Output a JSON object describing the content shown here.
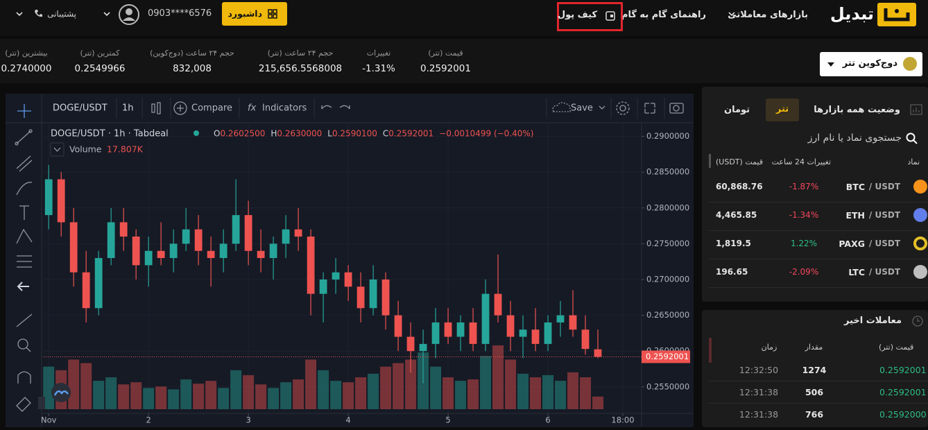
{
  "nav": {
    "logo": "تبدیل",
    "markets": "بازارهای معاملاتی",
    "guide": "راهنمای گام به گام",
    "wallet": "کیف پول",
    "dashboard": "داشبورد",
    "phone": "0903****6576",
    "support": "پشتیبانی"
  },
  "ticker": [
    {
      "label": "قیمت (تتر)",
      "value": "0.2592001"
    },
    {
      "label": "تغییرات",
      "value": "-1.31%"
    },
    {
      "label": "حجم ۲۴ ساعت (تتر)",
      "value": "215,656.5568008"
    },
    {
      "label": "حجم ۲۴ ساعت (دوج‌کوین)",
      "value": "832,008"
    },
    {
      "label": "کمترین (تتر)",
      "value": "0.2549966"
    },
    {
      "label": "بیشترین (تتر)",
      "value": "0.2740000"
    }
  ],
  "market_selector": "دوج‌کوین تتر",
  "toolbar": {
    "symbol": "DOGE/USDT",
    "interval": "1h",
    "compare": "Compare",
    "indicators": "Indicators",
    "save": "Save"
  },
  "chart_data": {
    "type": "candlestick",
    "title": "DOGE/USDT · 1h · Tabdeal",
    "ohlc_legend": [
      {
        "key": "O",
        "text": "0.2602500"
      },
      {
        "key": "H",
        "text": "0.2630000"
      },
      {
        "key": "L",
        "text": "0.2590100"
      },
      {
        "key": "C",
        "text": "0.2592001"
      }
    ],
    "change_text": "−0.0010499 (−0.40%)",
    "volume_name": "Volume",
    "volume_label": "17.807K",
    "x": [
      0,
      3,
      6,
      9,
      12,
      15,
      18,
      21,
      24,
      27,
      30,
      33,
      36,
      39,
      42,
      45,
      48,
      51,
      54,
      57,
      60,
      63,
      66,
      69,
      72,
      75,
      78,
      81,
      84,
      87,
      90,
      93,
      96,
      99,
      102,
      105,
      108,
      111,
      114,
      117,
      120,
      123,
      126,
      129,
      132
    ],
    "open": [
      0.279,
      0.284,
      0.278,
      0.271,
      0.266,
      0.273,
      0.278,
      0.276,
      0.272,
      0.274,
      0.273,
      0.275,
      0.277,
      0.274,
      0.273,
      0.275,
      0.279,
      0.274,
      0.273,
      0.275,
      0.277,
      0.276,
      0.268,
      0.27,
      0.271,
      0.269,
      0.266,
      0.27,
      0.265,
      0.262,
      0.26,
      0.261,
      0.264,
      0.262,
      0.264,
      0.261,
      0.268,
      0.265,
      0.262,
      0.263,
      0.261,
      0.264,
      0.265,
      0.263,
      0.26025
    ],
    "high": [
      0.286,
      0.285,
      0.28,
      0.274,
      0.274,
      0.28,
      0.28,
      0.277,
      0.276,
      0.278,
      0.277,
      0.28,
      0.279,
      0.276,
      0.277,
      0.284,
      0.281,
      0.277,
      0.276,
      0.279,
      0.28,
      0.277,
      0.271,
      0.273,
      0.272,
      0.271,
      0.272,
      0.271,
      0.267,
      0.264,
      0.263,
      0.266,
      0.266,
      0.265,
      0.266,
      0.27,
      0.2735,
      0.267,
      0.265,
      0.266,
      0.265,
      0.267,
      0.2685,
      0.265,
      0.263
    ],
    "low": [
      0.277,
      0.276,
      0.269,
      0.264,
      0.265,
      0.272,
      0.274,
      0.27,
      0.269,
      0.272,
      0.271,
      0.274,
      0.272,
      0.269,
      0.271,
      0.274,
      0.272,
      0.271,
      0.27,
      0.273,
      0.274,
      0.265,
      0.264,
      0.268,
      0.267,
      0.264,
      0.265,
      0.263,
      0.26,
      0.257,
      0.2555,
      0.259,
      0.261,
      0.26,
      0.26,
      0.26,
      0.264,
      0.26,
      0.259,
      0.26,
      0.26,
      0.262,
      0.262,
      0.2595,
      0.25901
    ],
    "close": [
      0.284,
      0.278,
      0.271,
      0.266,
      0.273,
      0.278,
      0.276,
      0.272,
      0.274,
      0.273,
      0.275,
      0.277,
      0.274,
      0.273,
      0.275,
      0.279,
      0.274,
      0.273,
      0.275,
      0.277,
      0.276,
      0.268,
      0.27,
      0.271,
      0.269,
      0.266,
      0.27,
      0.265,
      0.262,
      0.26,
      0.261,
      0.264,
      0.262,
      0.264,
      0.261,
      0.268,
      0.265,
      0.262,
      0.263,
      0.261,
      0.264,
      0.265,
      0.263,
      0.2603,
      0.2592001
    ],
    "volume": [
      60000,
      55000,
      70000,
      65000,
      40000,
      45000,
      35000,
      38000,
      30000,
      32000,
      28000,
      42000,
      36000,
      40000,
      30000,
      55000,
      48000,
      35000,
      30000,
      38000,
      42000,
      70000,
      55000,
      40000,
      38000,
      45000,
      50000,
      60000,
      65000,
      70000,
      80000,
      60000,
      45000,
      40000,
      42000,
      75000,
      90000,
      70000,
      50000,
      45000,
      48000,
      40000,
      52000,
      45000,
      17807
    ],
    "up_color": "#26a69a",
    "down_color": "#ef5350",
    "last_price": 0.2592001,
    "last_price_color": "#ef5350",
    "grid": true,
    "xlim": [
      -1.2,
      142.5
    ],
    "ylim": [
      0.2513,
      0.2919
    ],
    "xticks": [
      {
        "value": 0,
        "label": "Nov"
      },
      {
        "value": 24,
        "label": "2"
      },
      {
        "value": 48,
        "label": "3"
      },
      {
        "value": 72,
        "label": "4"
      },
      {
        "value": 96,
        "label": "5"
      },
      {
        "value": 120,
        "label": "6"
      },
      {
        "value": 138,
        "label": "18:00"
      }
    ],
    "yticks": [
      {
        "value": 0.29,
        "label": "0.2900000"
      },
      {
        "value": 0.285,
        "label": "0.2850000"
      },
      {
        "value": 0.28,
        "label": "0.2800000"
      },
      {
        "value": 0.275,
        "label": "0.2750000"
      },
      {
        "value": 0.27,
        "label": "0.2700000"
      },
      {
        "value": 0.265,
        "label": "0.2650000"
      },
      {
        "value": 0.26,
        "label": "0.2600000"
      },
      {
        "value": 0.255,
        "label": "0.2550000"
      }
    ]
  },
  "markets": {
    "title": "وضعیت همه بازارها",
    "tabs": [
      "تتر",
      "تومان"
    ],
    "search": "جستجوی نماد یا نام ارز",
    "columns": [
      "نماد",
      "تغییرات 24 ساعت",
      "قیمت (USDT)"
    ],
    "rows": [
      {
        "base": "BTC",
        "quote": "/ USDT",
        "change": "-1.87%",
        "price": "60,868.76"
      },
      {
        "base": "ETH",
        "quote": "/ USDT",
        "change": "-1.34%",
        "price": "4,465.85"
      },
      {
        "base": "PAXG",
        "quote": "/ USDT",
        "change": "1.22%",
        "price": "1,819.5"
      },
      {
        "base": "LTC",
        "quote": "/ USDT",
        "change": "-2.09%",
        "price": "196.65"
      }
    ]
  },
  "trades": {
    "title": "معاملات اخیر",
    "columns": [
      "قیمت (تتر)",
      "مقدار",
      "زمان"
    ],
    "rows": [
      {
        "price": "0.2592001",
        "amount": "1274",
        "time": "12:32:50"
      },
      {
        "price": "0.2592001",
        "amount": "506",
        "time": "12:31:38"
      },
      {
        "price": "0.2592000",
        "amount": "766",
        "time": "12:31:38"
      }
    ]
  }
}
